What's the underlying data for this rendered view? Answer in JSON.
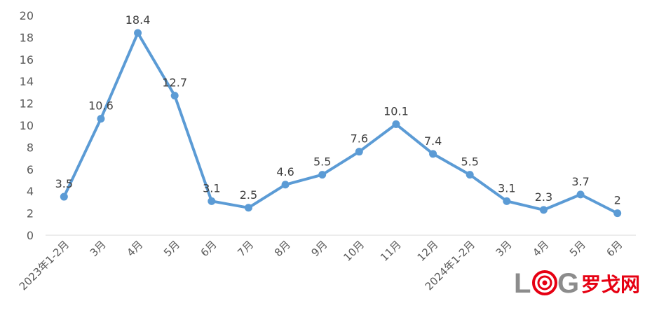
{
  "chart_data": {
    "type": "line",
    "categories": [
      "2023年1-2月",
      "3月",
      "4月",
      "5月",
      "6月",
      "7月",
      "8月",
      "9月",
      "10月",
      "11月",
      "12月",
      "2024年1-2月",
      "3月",
      "4月",
      "5月",
      "6月"
    ],
    "series": [
      {
        "values": [
          3.5,
          10.6,
          18.4,
          12.7,
          3.1,
          2.5,
          4.6,
          5.5,
          7.6,
          10.1,
          7.4,
          5.5,
          3.1,
          2.3,
          3.7,
          2
        ]
      }
    ],
    "data_labels": [
      "3.5",
      "10.6",
      "18.4",
      "12.7",
      "3.1",
      "2.5",
      "4.6",
      "5.5",
      "7.6",
      "10.1",
      "7.4",
      "5.5",
      "3.1",
      "2.3",
      "3.7",
      "2"
    ],
    "title": "",
    "xlabel": "",
    "ylabel": "",
    "ylim": [
      0,
      20
    ],
    "yticks": [
      "0",
      "2",
      "4",
      "6",
      "8",
      "10",
      "12",
      "14",
      "16",
      "18",
      "20"
    ],
    "grid": false,
    "line_color": "#5b9bd5",
    "legend": "none"
  },
  "watermark": {
    "text_en": "LOG",
    "text_cn": "罗戈网",
    "brand_color": "#e60012",
    "gray_color": "#8c8c8c"
  }
}
